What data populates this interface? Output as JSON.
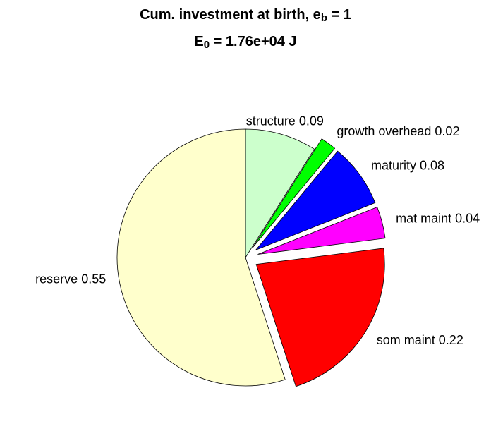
{
  "chart_data": {
    "type": "pie",
    "title": [
      {
        "text": "Cum. investment at birth, e"
      },
      {
        "text": "b",
        "sub": true
      },
      {
        "text": " = 1"
      }
    ],
    "subtitle": [
      {
        "text": "E"
      },
      {
        "text": "0",
        "sub": true
      },
      {
        "text": " = 1.76e+04 J"
      }
    ],
    "categories": [
      "structure",
      "growth overhead",
      "maturity",
      "mat maint",
      "som maint",
      "reserve"
    ],
    "values": [
      0.09,
      0.02,
      0.08,
      0.04,
      0.22,
      0.55
    ],
    "colors": [
      "#ccffcc",
      "#00ff00",
      "#0000ff",
      "#ff00ff",
      "#ff0000",
      "#ffffcc"
    ],
    "explode": [
      false,
      true,
      true,
      true,
      true,
      false
    ]
  }
}
